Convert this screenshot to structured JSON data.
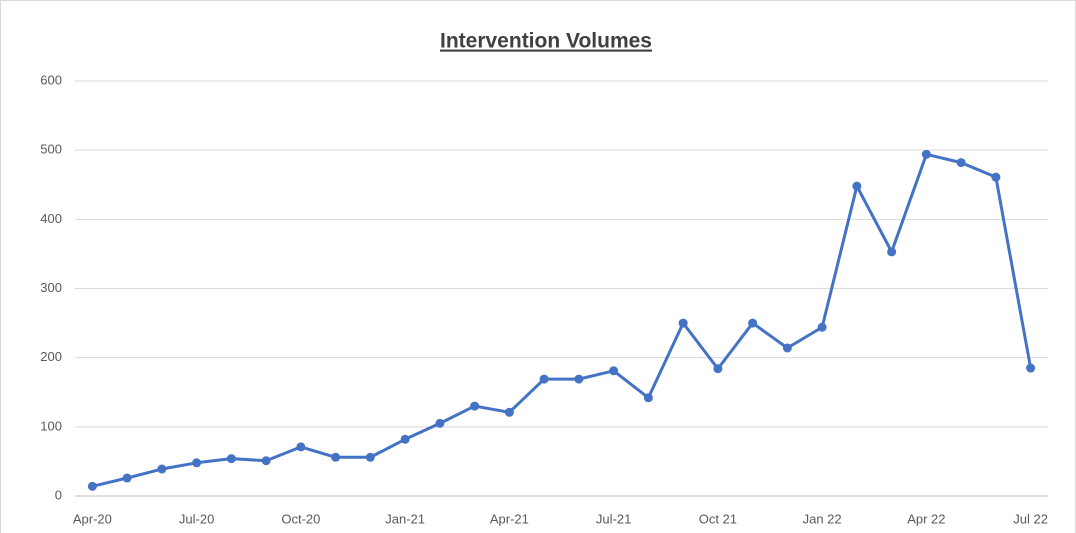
{
  "chart_data": {
    "type": "line",
    "title": "Intervention Volumes",
    "categories": [
      "Apr-20",
      null,
      null,
      "Jul-20",
      null,
      null,
      "Oct-20",
      null,
      null,
      "Jan-21",
      null,
      null,
      "Apr-21",
      null,
      null,
      "Jul-21",
      null,
      null,
      "Oct 21",
      null,
      null,
      "Jan 22",
      null,
      null,
      "Apr 22",
      null,
      null,
      "Jul 22"
    ],
    "series": [
      {
        "name": "Intervention Volumes",
        "color": "#4472c4",
        "values": [
          14,
          26,
          39,
          48,
          54,
          51,
          71,
          56,
          56,
          82,
          105,
          130,
          121,
          169,
          169,
          181,
          142,
          250,
          184,
          250,
          214,
          244,
          448,
          353,
          494,
          482,
          461,
          185
        ]
      }
    ],
    "ylim": [
      0,
      600
    ],
    "yticks": [
      0,
      100,
      200,
      300,
      400,
      500,
      600
    ],
    "grid": true
  }
}
